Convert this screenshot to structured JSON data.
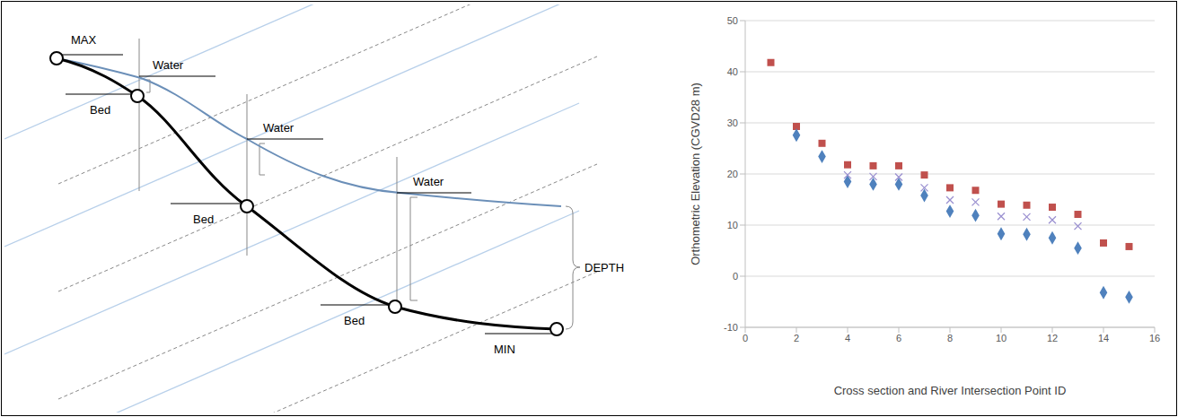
{
  "diagram": {
    "max_label": "MAX",
    "min_label": "MIN",
    "depth_label": "DEPTH",
    "sections": [
      {
        "water": "Water",
        "bed": "Bed"
      },
      {
        "water": "Water",
        "bed": "Bed"
      },
      {
        "water": "Water",
        "bed": "Bed"
      }
    ]
  },
  "chart_data": {
    "type": "scatter",
    "x_label": "Cross section and River Intersection Point ID",
    "y_label": "Orthometric Elevation (CGVD28 m)",
    "x": [
      1,
      2,
      3,
      4,
      5,
      6,
      7,
      8,
      9,
      10,
      11,
      12,
      13,
      14,
      15
    ],
    "series": [
      {
        "color": "#c0504d",
        "marker": "square",
        "values": [
          41.8,
          29.3,
          26,
          21.8,
          21.6,
          21.6,
          19.8,
          17.3,
          16.8,
          14.1,
          13.9,
          13.5,
          12.1,
          6.5,
          5.8
        ]
      },
      {
        "color": "#4f81bd",
        "marker": "diamond",
        "values": [
          null,
          27.6,
          23.4,
          18.5,
          18,
          18,
          15.8,
          12.7,
          11.9,
          8.3,
          8.2,
          7.5,
          5.5,
          -3.2,
          -4.1
        ]
      },
      {
        "color": "#9a8fd0",
        "marker": "x",
        "values": [
          null,
          null,
          null,
          19.8,
          19.5,
          19.4,
          17.3,
          14.9,
          14.5,
          11.7,
          11.6,
          11,
          9.8,
          null,
          null
        ]
      }
    ],
    "xlim": [
      0,
      16
    ],
    "xticks": [
      0,
      2,
      4,
      6,
      8,
      10,
      12,
      14,
      16
    ],
    "ylim": [
      -10,
      50
    ],
    "yticks": [
      -10,
      0,
      10,
      20,
      30,
      40,
      50
    ],
    "grid": true
  }
}
